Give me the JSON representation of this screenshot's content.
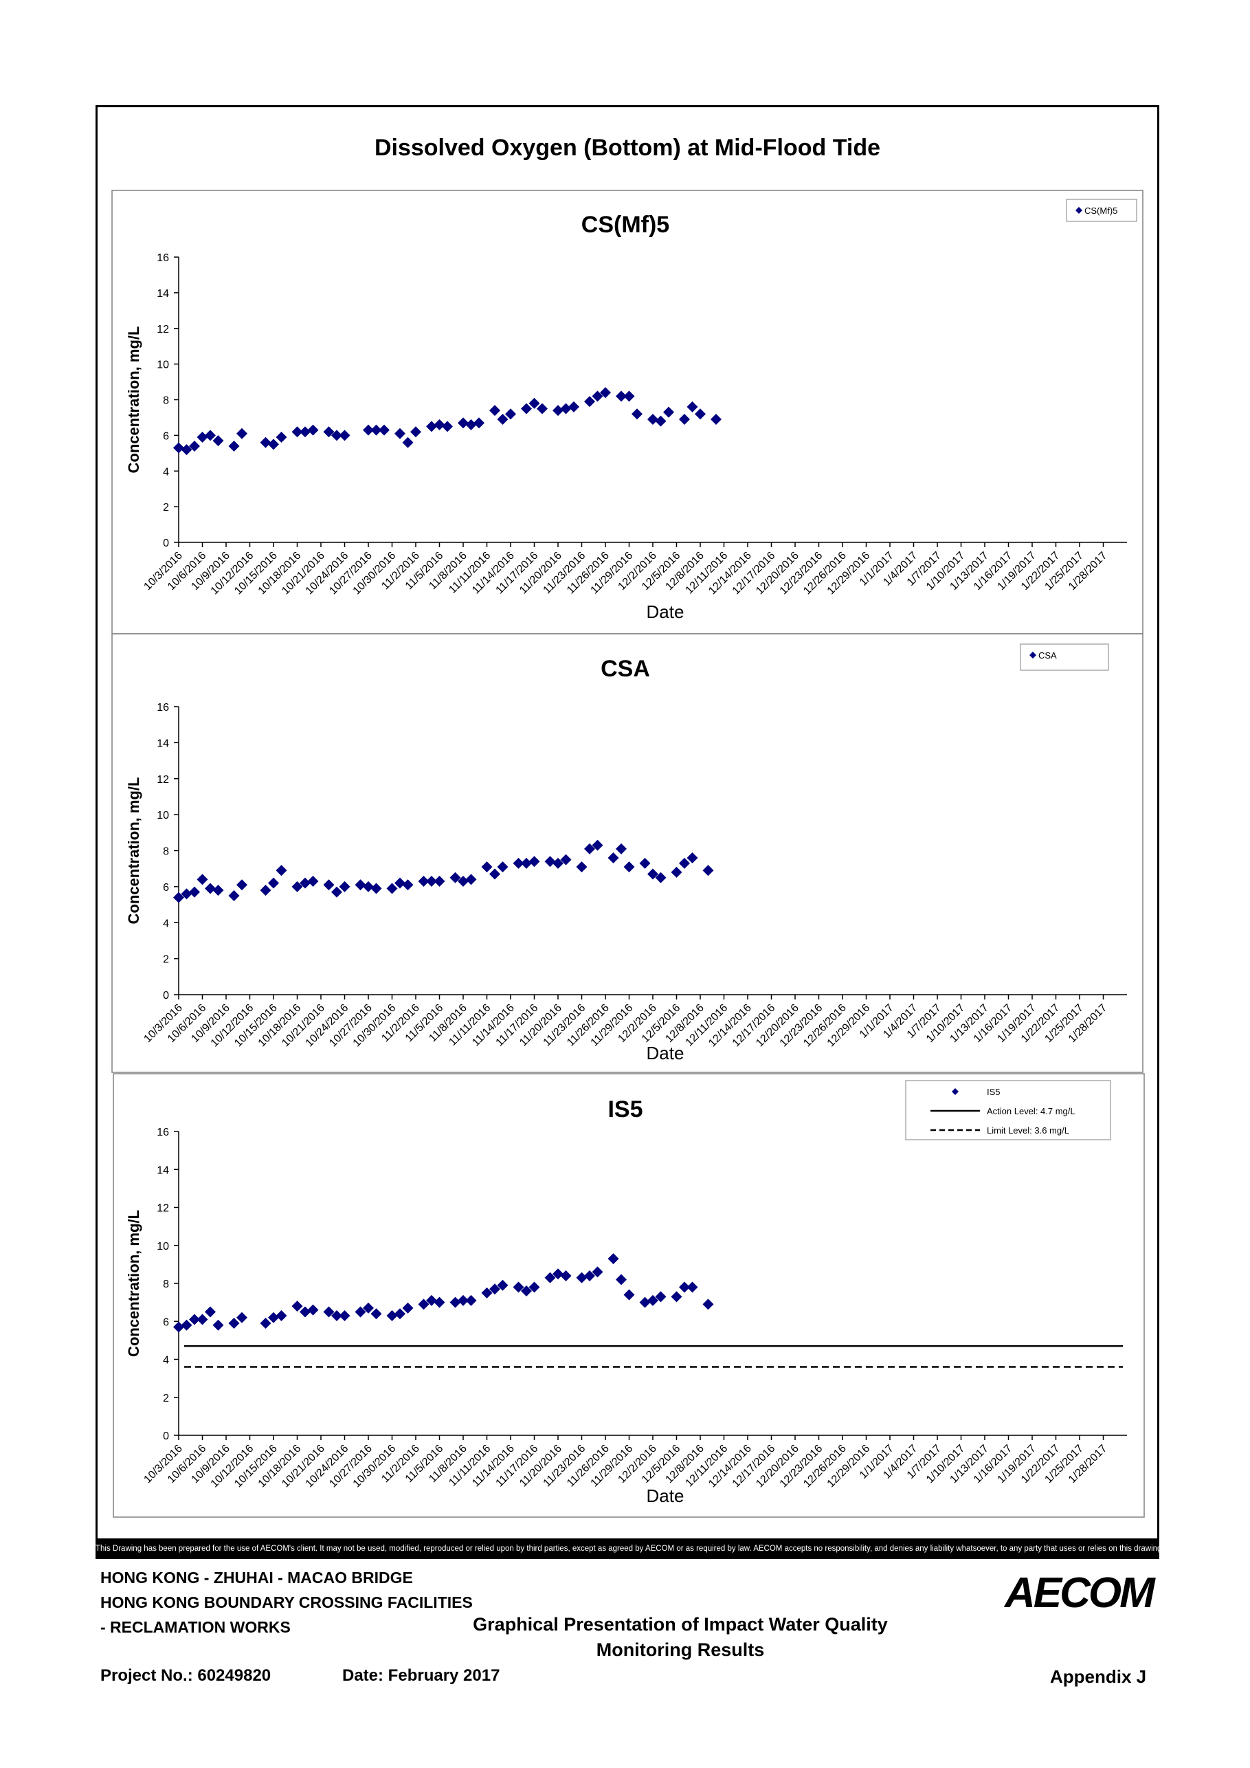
{
  "page_title": "Dissolved Oxygen (Bottom) at Mid-Flood Tide",
  "disclaimer": "This Drawing has been prepared for the use of AECOM's client. It may not be used, modified, reproduced or relied upon by third parties, except as agreed by AECOM or as required by law. AECOM accepts no responsibility, and denies any liability whatsoever, to any party that uses or relies on this drawing without AECOM's express written consent.",
  "footer": {
    "project_line1": "HONG KONG - ZHUHAI - MACAO BRIDGE",
    "project_line2": "HONG KONG BOUNDARY CROSSING FACILITIES",
    "project_line3": "- RECLAMATION WORKS",
    "title_line1": "Graphical Presentation of Impact Water Quality",
    "title_line2": "Monitoring Results",
    "project_no": "Project No.: 60249820",
    "date": "Date: February 2017",
    "appendix": "Appendix J",
    "logo": "AECOM"
  },
  "x_tick_labels": [
    "10/3/2016",
    "10/6/2016",
    "10/9/2016",
    "10/12/2016",
    "10/15/2016",
    "10/18/2016",
    "10/21/2016",
    "10/24/2016",
    "10/27/2016",
    "10/30/2016",
    "11/2/2016",
    "11/5/2016",
    "11/8/2016",
    "11/11/2016",
    "11/14/2016",
    "11/17/2016",
    "11/20/2016",
    "11/23/2016",
    "11/26/2016",
    "11/29/2016",
    "12/2/2016",
    "12/5/2016",
    "12/8/2016",
    "12/11/2016",
    "12/14/2016",
    "12/17/2016",
    "12/20/2016",
    "12/23/2016",
    "12/26/2016",
    "12/29/2016",
    "1/1/2017",
    "1/4/2017",
    "1/7/2017",
    "1/10/2017",
    "1/13/2017",
    "1/16/2017",
    "1/19/2017",
    "1/22/2017",
    "1/25/2017",
    "1/28/2017"
  ],
  "chart_data": [
    {
      "type": "scatter",
      "title": "CS(Mf)5",
      "xlabel": "Date",
      "ylabel": "Concentration, mg/L",
      "ylim": [
        0,
        16
      ],
      "yticks": [
        0,
        2,
        4,
        6,
        8,
        10,
        12,
        14,
        16
      ],
      "xlim": [
        "10/3/2016",
        "1/31/2017"
      ],
      "legend_position": "top-right",
      "marker_color": "#000080",
      "series": [
        {
          "name": "CS(Mf)5",
          "points": [
            [
              "10/3/2016",
              5.3
            ],
            [
              "10/4/2016",
              5.2
            ],
            [
              "10/5/2016",
              5.4
            ],
            [
              "10/6/2016",
              5.9
            ],
            [
              "10/7/2016",
              6.0
            ],
            [
              "10/8/2016",
              5.7
            ],
            [
              "10/10/2016",
              5.4
            ],
            [
              "10/11/2016",
              6.1
            ],
            [
              "10/14/2016",
              5.6
            ],
            [
              "10/15/2016",
              5.5
            ],
            [
              "10/16/2016",
              5.9
            ],
            [
              "10/18/2016",
              6.2
            ],
            [
              "10/19/2016",
              6.2
            ],
            [
              "10/20/2016",
              6.3
            ],
            [
              "10/22/2016",
              6.2
            ],
            [
              "10/23/2016",
              6.0
            ],
            [
              "10/24/2016",
              6.0
            ],
            [
              "10/27/2016",
              6.3
            ],
            [
              "10/28/2016",
              6.3
            ],
            [
              "10/29/2016",
              6.3
            ],
            [
              "10/31/2016",
              6.1
            ],
            [
              "11/1/2016",
              5.6
            ],
            [
              "11/2/2016",
              6.2
            ],
            [
              "11/4/2016",
              6.5
            ],
            [
              "11/5/2016",
              6.6
            ],
            [
              "11/6/2016",
              6.5
            ],
            [
              "11/8/2016",
              6.7
            ],
            [
              "11/9/2016",
              6.6
            ],
            [
              "11/10/2016",
              6.7
            ],
            [
              "11/12/2016",
              7.4
            ],
            [
              "11/13/2016",
              6.9
            ],
            [
              "11/14/2016",
              7.2
            ],
            [
              "11/16/2016",
              7.5
            ],
            [
              "11/17/2016",
              7.8
            ],
            [
              "11/18/2016",
              7.5
            ],
            [
              "11/20/2016",
              7.4
            ],
            [
              "11/21/2016",
              7.5
            ],
            [
              "11/22/2016",
              7.6
            ],
            [
              "11/24/2016",
              7.9
            ],
            [
              "11/25/2016",
              8.2
            ],
            [
              "11/26/2016",
              8.4
            ],
            [
              "11/28/2016",
              8.2
            ],
            [
              "11/29/2016",
              8.2
            ],
            [
              "11/30/2016",
              7.2
            ],
            [
              "12/2/2016",
              6.9
            ],
            [
              "12/3/2016",
              6.8
            ],
            [
              "12/4/2016",
              7.3
            ],
            [
              "12/6/2016",
              6.9
            ],
            [
              "12/7/2016",
              7.6
            ],
            [
              "12/8/2016",
              7.2
            ],
            [
              "12/10/2016",
              6.9
            ]
          ]
        }
      ]
    },
    {
      "type": "scatter",
      "title": "CSA",
      "xlabel": "Date",
      "ylabel": "Concentration, mg/L",
      "ylim": [
        0,
        16
      ],
      "yticks": [
        0,
        2,
        4,
        6,
        8,
        10,
        12,
        14,
        16
      ],
      "xlim": [
        "10/3/2016",
        "1/31/2017"
      ],
      "legend_position": "top-right",
      "marker_color": "#000080",
      "series": [
        {
          "name": "CSA",
          "points": [
            [
              "10/3/2016",
              5.4
            ],
            [
              "10/4/2016",
              5.6
            ],
            [
              "10/5/2016",
              5.7
            ],
            [
              "10/6/2016",
              6.4
            ],
            [
              "10/7/2016",
              5.9
            ],
            [
              "10/8/2016",
              5.8
            ],
            [
              "10/10/2016",
              5.5
            ],
            [
              "10/11/2016",
              6.1
            ],
            [
              "10/14/2016",
              5.8
            ],
            [
              "10/15/2016",
              6.2
            ],
            [
              "10/16/2016",
              6.9
            ],
            [
              "10/18/2016",
              6.0
            ],
            [
              "10/19/2016",
              6.2
            ],
            [
              "10/20/2016",
              6.3
            ],
            [
              "10/22/2016",
              6.1
            ],
            [
              "10/23/2016",
              5.7
            ],
            [
              "10/24/2016",
              6.0
            ],
            [
              "10/26/2016",
              6.1
            ],
            [
              "10/27/2016",
              6.0
            ],
            [
              "10/28/2016",
              5.9
            ],
            [
              "10/30/2016",
              5.9
            ],
            [
              "10/31/2016",
              6.2
            ],
            [
              "11/1/2016",
              6.1
            ],
            [
              "11/3/2016",
              6.3
            ],
            [
              "11/4/2016",
              6.3
            ],
            [
              "11/5/2016",
              6.3
            ],
            [
              "11/7/2016",
              6.5
            ],
            [
              "11/8/2016",
              6.3
            ],
            [
              "11/9/2016",
              6.4
            ],
            [
              "11/11/2016",
              7.1
            ],
            [
              "11/12/2016",
              6.7
            ],
            [
              "11/13/2016",
              7.1
            ],
            [
              "11/15/2016",
              7.3
            ],
            [
              "11/16/2016",
              7.3
            ],
            [
              "11/17/2016",
              7.4
            ],
            [
              "11/19/2016",
              7.4
            ],
            [
              "11/20/2016",
              7.3
            ],
            [
              "11/21/2016",
              7.5
            ],
            [
              "11/23/2016",
              7.1
            ],
            [
              "11/24/2016",
              8.1
            ],
            [
              "11/25/2016",
              8.3
            ],
            [
              "11/27/2016",
              7.6
            ],
            [
              "11/28/2016",
              8.1
            ],
            [
              "11/29/2016",
              7.1
            ],
            [
              "12/1/2016",
              7.3
            ],
            [
              "12/2/2016",
              6.7
            ],
            [
              "12/3/2016",
              6.5
            ],
            [
              "12/5/2016",
              6.8
            ],
            [
              "12/6/2016",
              7.3
            ],
            [
              "12/7/2016",
              7.6
            ],
            [
              "12/9/2016",
              6.9
            ]
          ]
        }
      ]
    },
    {
      "type": "scatter",
      "title": "IS5",
      "xlabel": "Date",
      "ylabel": "Concentration, mg/L",
      "ylim": [
        0,
        16
      ],
      "yticks": [
        0,
        2,
        4,
        6,
        8,
        10,
        12,
        14,
        16
      ],
      "xlim": [
        "10/3/2016",
        "1/31/2017"
      ],
      "legend_position": "top-right",
      "marker_color": "#000080",
      "series": [
        {
          "name": "IS5",
          "points": [
            [
              "10/3/2016",
              5.7
            ],
            [
              "10/4/2016",
              5.8
            ],
            [
              "10/5/2016",
              6.1
            ],
            [
              "10/6/2016",
              6.1
            ],
            [
              "10/7/2016",
              6.5
            ],
            [
              "10/8/2016",
              5.8
            ],
            [
              "10/10/2016",
              5.9
            ],
            [
              "10/11/2016",
              6.2
            ],
            [
              "10/14/2016",
              5.9
            ],
            [
              "10/15/2016",
              6.2
            ],
            [
              "10/16/2016",
              6.3
            ],
            [
              "10/18/2016",
              6.8
            ],
            [
              "10/19/2016",
              6.5
            ],
            [
              "10/20/2016",
              6.6
            ],
            [
              "10/22/2016",
              6.5
            ],
            [
              "10/23/2016",
              6.3
            ],
            [
              "10/24/2016",
              6.3
            ],
            [
              "10/26/2016",
              6.5
            ],
            [
              "10/27/2016",
              6.7
            ],
            [
              "10/28/2016",
              6.4
            ],
            [
              "10/30/2016",
              6.3
            ],
            [
              "10/31/2016",
              6.4
            ],
            [
              "11/1/2016",
              6.7
            ],
            [
              "11/3/2016",
              6.9
            ],
            [
              "11/4/2016",
              7.1
            ],
            [
              "11/5/2016",
              7.0
            ],
            [
              "11/7/2016",
              7.0
            ],
            [
              "11/8/2016",
              7.1
            ],
            [
              "11/9/2016",
              7.1
            ],
            [
              "11/11/2016",
              7.5
            ],
            [
              "11/12/2016",
              7.7
            ],
            [
              "11/13/2016",
              7.9
            ],
            [
              "11/15/2016",
              7.8
            ],
            [
              "11/16/2016",
              7.6
            ],
            [
              "11/17/2016",
              7.8
            ],
            [
              "11/19/2016",
              8.3
            ],
            [
              "11/20/2016",
              8.5
            ],
            [
              "11/21/2016",
              8.4
            ],
            [
              "11/23/2016",
              8.3
            ],
            [
              "11/24/2016",
              8.4
            ],
            [
              "11/25/2016",
              8.6
            ],
            [
              "11/27/2016",
              9.3
            ],
            [
              "11/28/2016",
              8.2
            ],
            [
              "11/29/2016",
              7.4
            ],
            [
              "12/1/2016",
              7.0
            ],
            [
              "12/2/2016",
              7.1
            ],
            [
              "12/3/2016",
              7.3
            ],
            [
              "12/5/2016",
              7.3
            ],
            [
              "12/6/2016",
              7.8
            ],
            [
              "12/7/2016",
              7.8
            ],
            [
              "12/9/2016",
              6.9
            ]
          ]
        },
        {
          "name": "Action Level: 4.7 mg/L",
          "line_type": "solid",
          "value": 4.7
        },
        {
          "name": "Limit Level: 3.6 mg/L",
          "line_type": "dashed",
          "value": 3.6
        }
      ]
    }
  ]
}
